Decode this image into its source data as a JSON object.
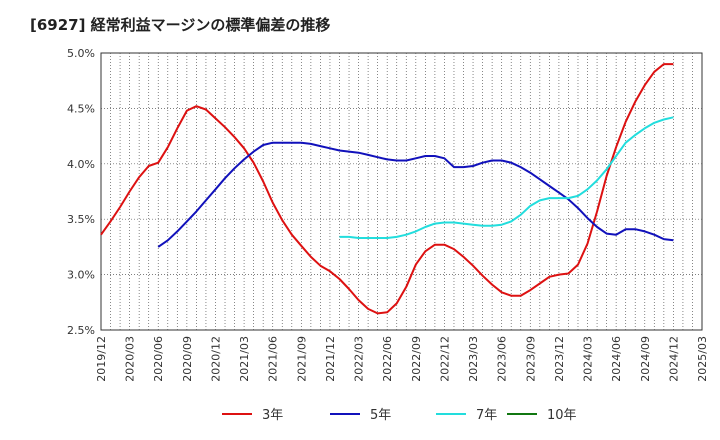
{
  "chart_data": {
    "type": "line",
    "title": "[6927]  経常利益マージンの標準偏差の推移",
    "xlabel": "",
    "ylabel": "",
    "ylim": [
      0.025,
      0.05
    ],
    "y_ticks": [
      "5.0%",
      "4.5%",
      "4.0%",
      "3.5%",
      "3.0%",
      "2.5%"
    ],
    "y_tick_values": [
      0.05,
      0.045,
      0.04,
      0.035,
      0.03,
      0.025
    ],
    "x_start": "2019/12",
    "x_end": "2025/03",
    "x_ticks": [
      "2019/12",
      "2020/03",
      "2020/06",
      "2020/09",
      "2020/12",
      "2021/03",
      "2021/06",
      "2021/09",
      "2021/12",
      "2022/03",
      "2022/06",
      "2022/09",
      "2022/12",
      "2023/03",
      "2023/06",
      "2023/09",
      "2023/12",
      "2024/03",
      "2024/06",
      "2024/09",
      "2024/12",
      "2025/03"
    ],
    "grid": true,
    "legend_placement": "bottom",
    "series": [
      {
        "name": "3年",
        "color": "#dd1111",
        "x": [
          "2019/12",
          "2020/01",
          "2020/02",
          "2020/03",
          "2020/04",
          "2020/05",
          "2020/06",
          "2020/07",
          "2020/08",
          "2020/09",
          "2020/10",
          "2020/11",
          "2020/12",
          "2021/01",
          "2021/02",
          "2021/03",
          "2021/04",
          "2021/05",
          "2021/06",
          "2021/07",
          "2021/08",
          "2021/09",
          "2021/10",
          "2021/11",
          "2021/12",
          "2022/01",
          "2022/02",
          "2022/03",
          "2022/04",
          "2022/05",
          "2022/06",
          "2022/07",
          "2022/08",
          "2022/09",
          "2022/10",
          "2022/11",
          "2022/12",
          "2023/01",
          "2023/02",
          "2023/03",
          "2023/04",
          "2023/05",
          "2023/06",
          "2023/07",
          "2023/08",
          "2023/09",
          "2023/10",
          "2023/11",
          "2023/12",
          "2024/01",
          "2024/02",
          "2024/03",
          "2024/04",
          "2024/05",
          "2024/06",
          "2024/07",
          "2024/08",
          "2024/09",
          "2024/10",
          "2024/11",
          "2024/12"
        ],
        "values": [
          0.0336,
          0.0348,
          0.0361,
          0.0375,
          0.0388,
          0.0398,
          0.0401,
          0.0415,
          0.0432,
          0.0448,
          0.0452,
          0.0449,
          0.0441,
          0.0433,
          0.0424,
          0.0414,
          0.0401,
          0.0384,
          0.0365,
          0.0349,
          0.0336,
          0.0326,
          0.0316,
          0.0308,
          0.0303,
          0.0296,
          0.0287,
          0.0277,
          0.0269,
          0.0265,
          0.0266,
          0.0274,
          0.0289,
          0.0309,
          0.0321,
          0.0327,
          0.0327,
          0.0323,
          0.0316,
          0.0308,
          0.0299,
          0.0291,
          0.0284,
          0.0281,
          0.0281,
          0.0286,
          0.0292,
          0.0298,
          0.03,
          0.0301,
          0.0309,
          0.0328,
          0.0357,
          0.0389,
          0.0415,
          0.0438,
          0.0456,
          0.0471,
          0.0483,
          0.049,
          0.049
        ]
      },
      {
        "name": "5年",
        "color": "#1111bb",
        "x": [
          "2020/06",
          "2020/07",
          "2020/08",
          "2020/09",
          "2020/10",
          "2020/11",
          "2020/12",
          "2021/01",
          "2021/02",
          "2021/03",
          "2021/04",
          "2021/05",
          "2021/06",
          "2021/07",
          "2021/08",
          "2021/09",
          "2021/10",
          "2021/11",
          "2021/12",
          "2022/01",
          "2022/02",
          "2022/03",
          "2022/04",
          "2022/05",
          "2022/06",
          "2022/07",
          "2022/08",
          "2022/09",
          "2022/10",
          "2022/11",
          "2022/12",
          "2023/01",
          "2023/02",
          "2023/03",
          "2023/04",
          "2023/05",
          "2023/06",
          "2023/07",
          "2023/08",
          "2023/09",
          "2023/10",
          "2023/11",
          "2023/12",
          "2024/01",
          "2024/02",
          "2024/03",
          "2024/04",
          "2024/05",
          "2024/06",
          "2024/07",
          "2024/08",
          "2024/09",
          "2024/10",
          "2024/11",
          "2024/12"
        ],
        "values": [
          0.0325,
          0.0331,
          0.0339,
          0.0348,
          0.0357,
          0.0367,
          0.0377,
          0.0387,
          0.0396,
          0.0404,
          0.0411,
          0.0417,
          0.0419,
          0.0419,
          0.0419,
          0.0419,
          0.0418,
          0.0416,
          0.0414,
          0.0412,
          0.0411,
          0.041,
          0.0408,
          0.0406,
          0.0404,
          0.0403,
          0.0403,
          0.0405,
          0.0407,
          0.0407,
          0.0405,
          0.0397,
          0.0397,
          0.0398,
          0.0401,
          0.0403,
          0.0403,
          0.0401,
          0.0397,
          0.0392,
          0.0386,
          0.038,
          0.0374,
          0.0368,
          0.036,
          0.0351,
          0.0343,
          0.0337,
          0.0336,
          0.0341,
          0.0341,
          0.0339,
          0.0336,
          0.0332,
          0.0331
        ]
      },
      {
        "name": "7年",
        "color": "#22dddd",
        "x": [
          "2022/01",
          "2022/02",
          "2022/03",
          "2022/04",
          "2022/05",
          "2022/06",
          "2022/07",
          "2022/08",
          "2022/09",
          "2022/10",
          "2022/11",
          "2022/12",
          "2023/01",
          "2023/02",
          "2023/03",
          "2023/04",
          "2023/05",
          "2023/06",
          "2023/07",
          "2023/08",
          "2023/09",
          "2023/10",
          "2023/11",
          "2023/12",
          "2024/01",
          "2024/02",
          "2024/03",
          "2024/04",
          "2024/05",
          "2024/06",
          "2024/07",
          "2024/08",
          "2024/09",
          "2024/10",
          "2024/11",
          "2024/12"
        ],
        "values": [
          0.0334,
          0.0334,
          0.0333,
          0.0333,
          0.0333,
          0.0333,
          0.0334,
          0.0336,
          0.0339,
          0.0343,
          0.0346,
          0.0347,
          0.0347,
          0.0346,
          0.0345,
          0.0344,
          0.0344,
          0.0345,
          0.0348,
          0.0354,
          0.0362,
          0.0367,
          0.0369,
          0.0369,
          0.0369,
          0.0371,
          0.0377,
          0.0385,
          0.0395,
          0.0407,
          0.0419,
          0.0426,
          0.0432,
          0.0437,
          0.044,
          0.0442
        ]
      },
      {
        "name": "10年",
        "color": "#117711",
        "x": [],
        "values": []
      }
    ]
  }
}
